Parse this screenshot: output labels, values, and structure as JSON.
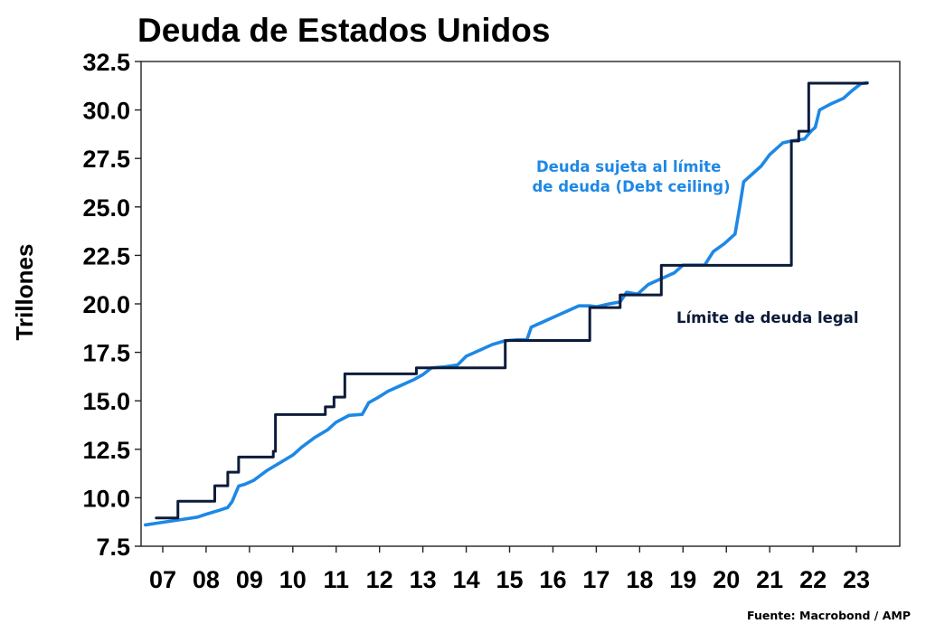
{
  "chart_data": {
    "type": "line",
    "title": "Deuda de Estados Unidos",
    "ylabel": "Trillones",
    "xlabel": "",
    "source": "Fuente: Macrobond / AMP",
    "xlim": [
      2006.5,
      2024.0
    ],
    "ylim": [
      7.5,
      32.5
    ],
    "grid": false,
    "x_ticks": [
      {
        "value": 2007,
        "label": "07"
      },
      {
        "value": 2008,
        "label": "08"
      },
      {
        "value": 2009,
        "label": "09"
      },
      {
        "value": 2010,
        "label": "10"
      },
      {
        "value": 2011,
        "label": "11"
      },
      {
        "value": 2012,
        "label": "12"
      },
      {
        "value": 2013,
        "label": "13"
      },
      {
        "value": 2014,
        "label": "14"
      },
      {
        "value": 2015,
        "label": "15"
      },
      {
        "value": 2016,
        "label": "16"
      },
      {
        "value": 2017,
        "label": "17"
      },
      {
        "value": 2018,
        "label": "18"
      },
      {
        "value": 2019,
        "label": "19"
      },
      {
        "value": 2020,
        "label": "20"
      },
      {
        "value": 2021,
        "label": "21"
      },
      {
        "value": 2022,
        "label": "22"
      },
      {
        "value": 2023,
        "label": "23"
      }
    ],
    "y_ticks": [
      {
        "value": 7.5,
        "label": "7.5"
      },
      {
        "value": 10,
        "label": "10.0"
      },
      {
        "value": 12.5,
        "label": "12.5"
      },
      {
        "value": 15,
        "label": "15.0"
      },
      {
        "value": 17.5,
        "label": "17.5"
      },
      {
        "value": 20,
        "label": "20.0"
      },
      {
        "value": 22.5,
        "label": "22.5"
      },
      {
        "value": 25,
        "label": "25.0"
      },
      {
        "value": 27.5,
        "label": "27.5"
      },
      {
        "value": 30,
        "label": "30.0"
      },
      {
        "value": 32.5,
        "label": "32.5"
      }
    ],
    "series": [
      {
        "name": "Deuda sujeta al límite de deuda (Debt ceiling)",
        "label_lines": [
          "Deuda sujeta al límite",
          "de deuda (Debt ceiling)"
        ],
        "color": "#1e88e5",
        "style": "line",
        "points": [
          [
            2006.6,
            8.6
          ],
          [
            2006.9,
            8.7
          ],
          [
            2007.2,
            8.8
          ],
          [
            2007.5,
            8.9
          ],
          [
            2007.8,
            9.0
          ],
          [
            2008.0,
            9.15
          ],
          [
            2008.3,
            9.35
          ],
          [
            2008.5,
            9.5
          ],
          [
            2008.6,
            9.8
          ],
          [
            2008.75,
            10.6
          ],
          [
            2008.9,
            10.7
          ],
          [
            2009.1,
            10.9
          ],
          [
            2009.4,
            11.4
          ],
          [
            2009.7,
            11.8
          ],
          [
            2010.0,
            12.2
          ],
          [
            2010.2,
            12.6
          ],
          [
            2010.5,
            13.1
          ],
          [
            2010.8,
            13.5
          ],
          [
            2011.0,
            13.9
          ],
          [
            2011.3,
            14.25
          ],
          [
            2011.6,
            14.3
          ],
          [
            2011.75,
            14.9
          ],
          [
            2011.95,
            15.15
          ],
          [
            2012.2,
            15.5
          ],
          [
            2012.5,
            15.8
          ],
          [
            2012.8,
            16.1
          ],
          [
            2013.0,
            16.35
          ],
          [
            2013.2,
            16.7
          ],
          [
            2013.5,
            16.75
          ],
          [
            2013.8,
            16.85
          ],
          [
            2014.0,
            17.3
          ],
          [
            2014.3,
            17.6
          ],
          [
            2014.6,
            17.9
          ],
          [
            2014.9,
            18.1
          ],
          [
            2015.2,
            18.15
          ],
          [
            2015.4,
            18.15
          ],
          [
            2015.5,
            18.8
          ],
          [
            2015.8,
            19.1
          ],
          [
            2016.1,
            19.4
          ],
          [
            2016.4,
            19.7
          ],
          [
            2016.6,
            19.9
          ],
          [
            2016.85,
            19.9
          ],
          [
            2017.0,
            19.85
          ],
          [
            2017.3,
            20.0
          ],
          [
            2017.55,
            20.1
          ],
          [
            2017.7,
            20.6
          ],
          [
            2017.95,
            20.5
          ],
          [
            2018.2,
            21.0
          ],
          [
            2018.5,
            21.3
          ],
          [
            2018.8,
            21.6
          ],
          [
            2019.0,
            22.0
          ],
          [
            2019.2,
            22.0
          ],
          [
            2019.5,
            22.0
          ],
          [
            2019.7,
            22.7
          ],
          [
            2019.95,
            23.1
          ],
          [
            2020.2,
            23.6
          ],
          [
            2020.3,
            24.9
          ],
          [
            2020.4,
            26.3
          ],
          [
            2020.6,
            26.7
          ],
          [
            2020.8,
            27.1
          ],
          [
            2021.0,
            27.7
          ],
          [
            2021.3,
            28.3
          ],
          [
            2021.5,
            28.4
          ],
          [
            2021.8,
            28.5
          ],
          [
            2021.95,
            28.9
          ],
          [
            2022.05,
            29.1
          ],
          [
            2022.15,
            30.0
          ],
          [
            2022.4,
            30.3
          ],
          [
            2022.7,
            30.6
          ],
          [
            2022.9,
            31.0
          ],
          [
            2023.1,
            31.35
          ],
          [
            2023.25,
            31.4
          ]
        ]
      },
      {
        "name": "Límite de deuda legal",
        "label_lines": [
          "Límite de deuda legal"
        ],
        "color": "#0d1b3a",
        "style": "step",
        "points": [
          [
            2006.85,
            8.96
          ],
          [
            2007.35,
            9.82
          ],
          [
            2008.2,
            10.62
          ],
          [
            2008.5,
            11.32
          ],
          [
            2008.75,
            12.1
          ],
          [
            2009.55,
            12.4
          ],
          [
            2009.6,
            14.29
          ],
          [
            2010.75,
            14.69
          ],
          [
            2010.95,
            15.19
          ],
          [
            2011.2,
            16.39
          ],
          [
            2012.85,
            16.7
          ],
          [
            2014.9,
            18.11
          ],
          [
            2016.85,
            19.81
          ],
          [
            2017.55,
            20.46
          ],
          [
            2018.5,
            21.99
          ],
          [
            2021.5,
            28.4
          ],
          [
            2021.67,
            28.9
          ],
          [
            2021.9,
            31.38
          ],
          [
            2023.25,
            31.38
          ]
        ]
      }
    ]
  }
}
